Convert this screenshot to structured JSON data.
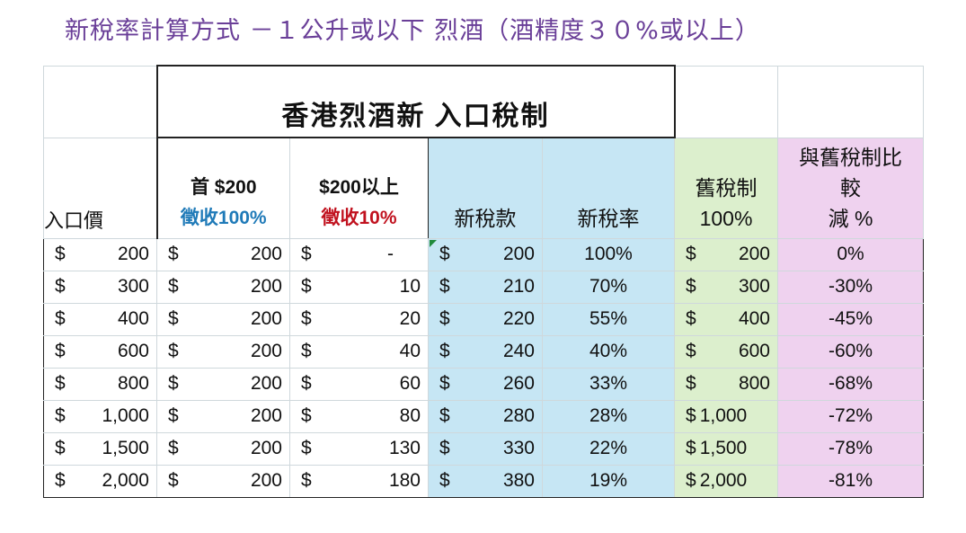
{
  "page_title": "新稅率計算方式 －１公升或以下 烈酒（酒精度３０%或以上）",
  "table_title": "香港烈酒新 入口稅制",
  "headers": {
    "import_price": "入口價",
    "first_200_line1": "首 $200",
    "first_200_line2": "徵收100%",
    "above_200_line1": "$200以上",
    "above_200_line2": "徵收10%",
    "new_tax": "新稅款",
    "new_rate": "新稅率",
    "old_line1": "舊稅制",
    "old_line2": "100%",
    "cmp_line1": "與舊稅制比",
    "cmp_line2": "較",
    "cmp_line3": "減 %"
  },
  "currency_symbol": "$",
  "rows": [
    {
      "price": "200",
      "first": "200",
      "above": "-",
      "new_tax": "200",
      "rate": "100%",
      "old": "200",
      "cmp": "0%"
    },
    {
      "price": "300",
      "first": "200",
      "above": "10",
      "new_tax": "210",
      "rate": "70%",
      "old": "300",
      "cmp": "-30%"
    },
    {
      "price": "400",
      "first": "200",
      "above": "20",
      "new_tax": "220",
      "rate": "55%",
      "old": "400",
      "cmp": "-45%"
    },
    {
      "price": "600",
      "first": "200",
      "above": "40",
      "new_tax": "240",
      "rate": "40%",
      "old": "600",
      "cmp": "-60%"
    },
    {
      "price": "800",
      "first": "200",
      "above": "60",
      "new_tax": "260",
      "rate": "33%",
      "old": "800",
      "cmp": "-68%"
    },
    {
      "price": "1,000",
      "first": "200",
      "above": "80",
      "new_tax": "280",
      "rate": "28%",
      "old": "1,000",
      "cmp": "-72%"
    },
    {
      "price": "1,500",
      "first": "200",
      "above": "130",
      "new_tax": "330",
      "rate": "22%",
      "old": "1,500",
      "cmp": "-78%"
    },
    {
      "price": "2,000",
      "first": "200",
      "above": "180",
      "new_tax": "380",
      "rate": "19%",
      "old": "2,000",
      "cmp": "-81%"
    }
  ],
  "colors": {
    "title": "#6a3f98",
    "new_tax_fill": "#c6e6f4",
    "old_tax_fill": "#dcefcd",
    "compare_fill": "#efd2ef",
    "first_label": "#1f7ab8",
    "above_label": "#c1121f"
  }
}
